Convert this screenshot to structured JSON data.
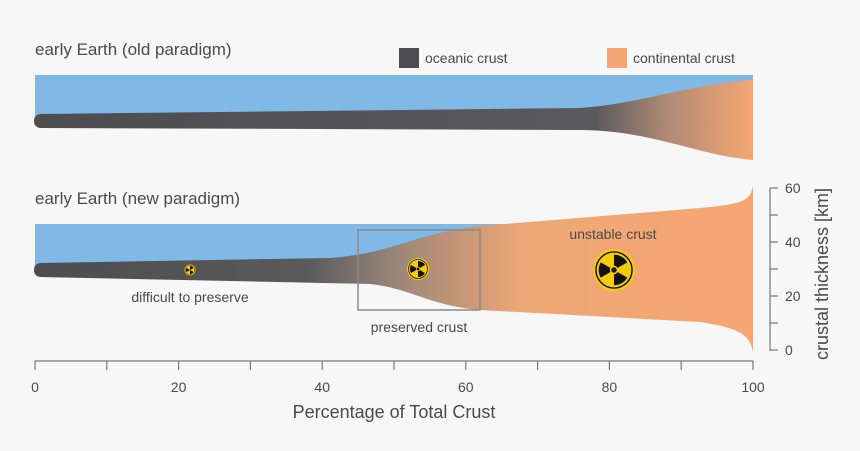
{
  "panels": {
    "old_title": "early Earth (old paradigm)",
    "new_title": "early Earth (new paradigm)"
  },
  "legend": [
    {
      "label": "oceanic crust",
      "color": "#4d4d4f"
    },
    {
      "label": "continental crust",
      "color": "#f5a673"
    }
  ],
  "annotations": {
    "difficult": "difficult to preserve",
    "preserved": "preserved crust",
    "unstable": "unstable crust"
  },
  "colors": {
    "ocean": "#80b8e6",
    "oceanic": "#4d4d4f",
    "continental": "#f5a673",
    "radiation": "#f7cc00"
  },
  "icons": [
    "radiation-icon-small",
    "radiation-icon-medium",
    "radiation-icon-large"
  ],
  "x_axis": {
    "label": "Percentage of Total Crust",
    "range": [
      0,
      100
    ],
    "ticks": [
      0,
      20,
      40,
      60,
      80,
      100
    ],
    "minor_step": 10
  },
  "y_axis": {
    "label": "crustal thickness [km]",
    "range": [
      0,
      60
    ],
    "ticks": [
      0,
      20,
      40,
      60
    ],
    "minor_step": 10
  }
}
